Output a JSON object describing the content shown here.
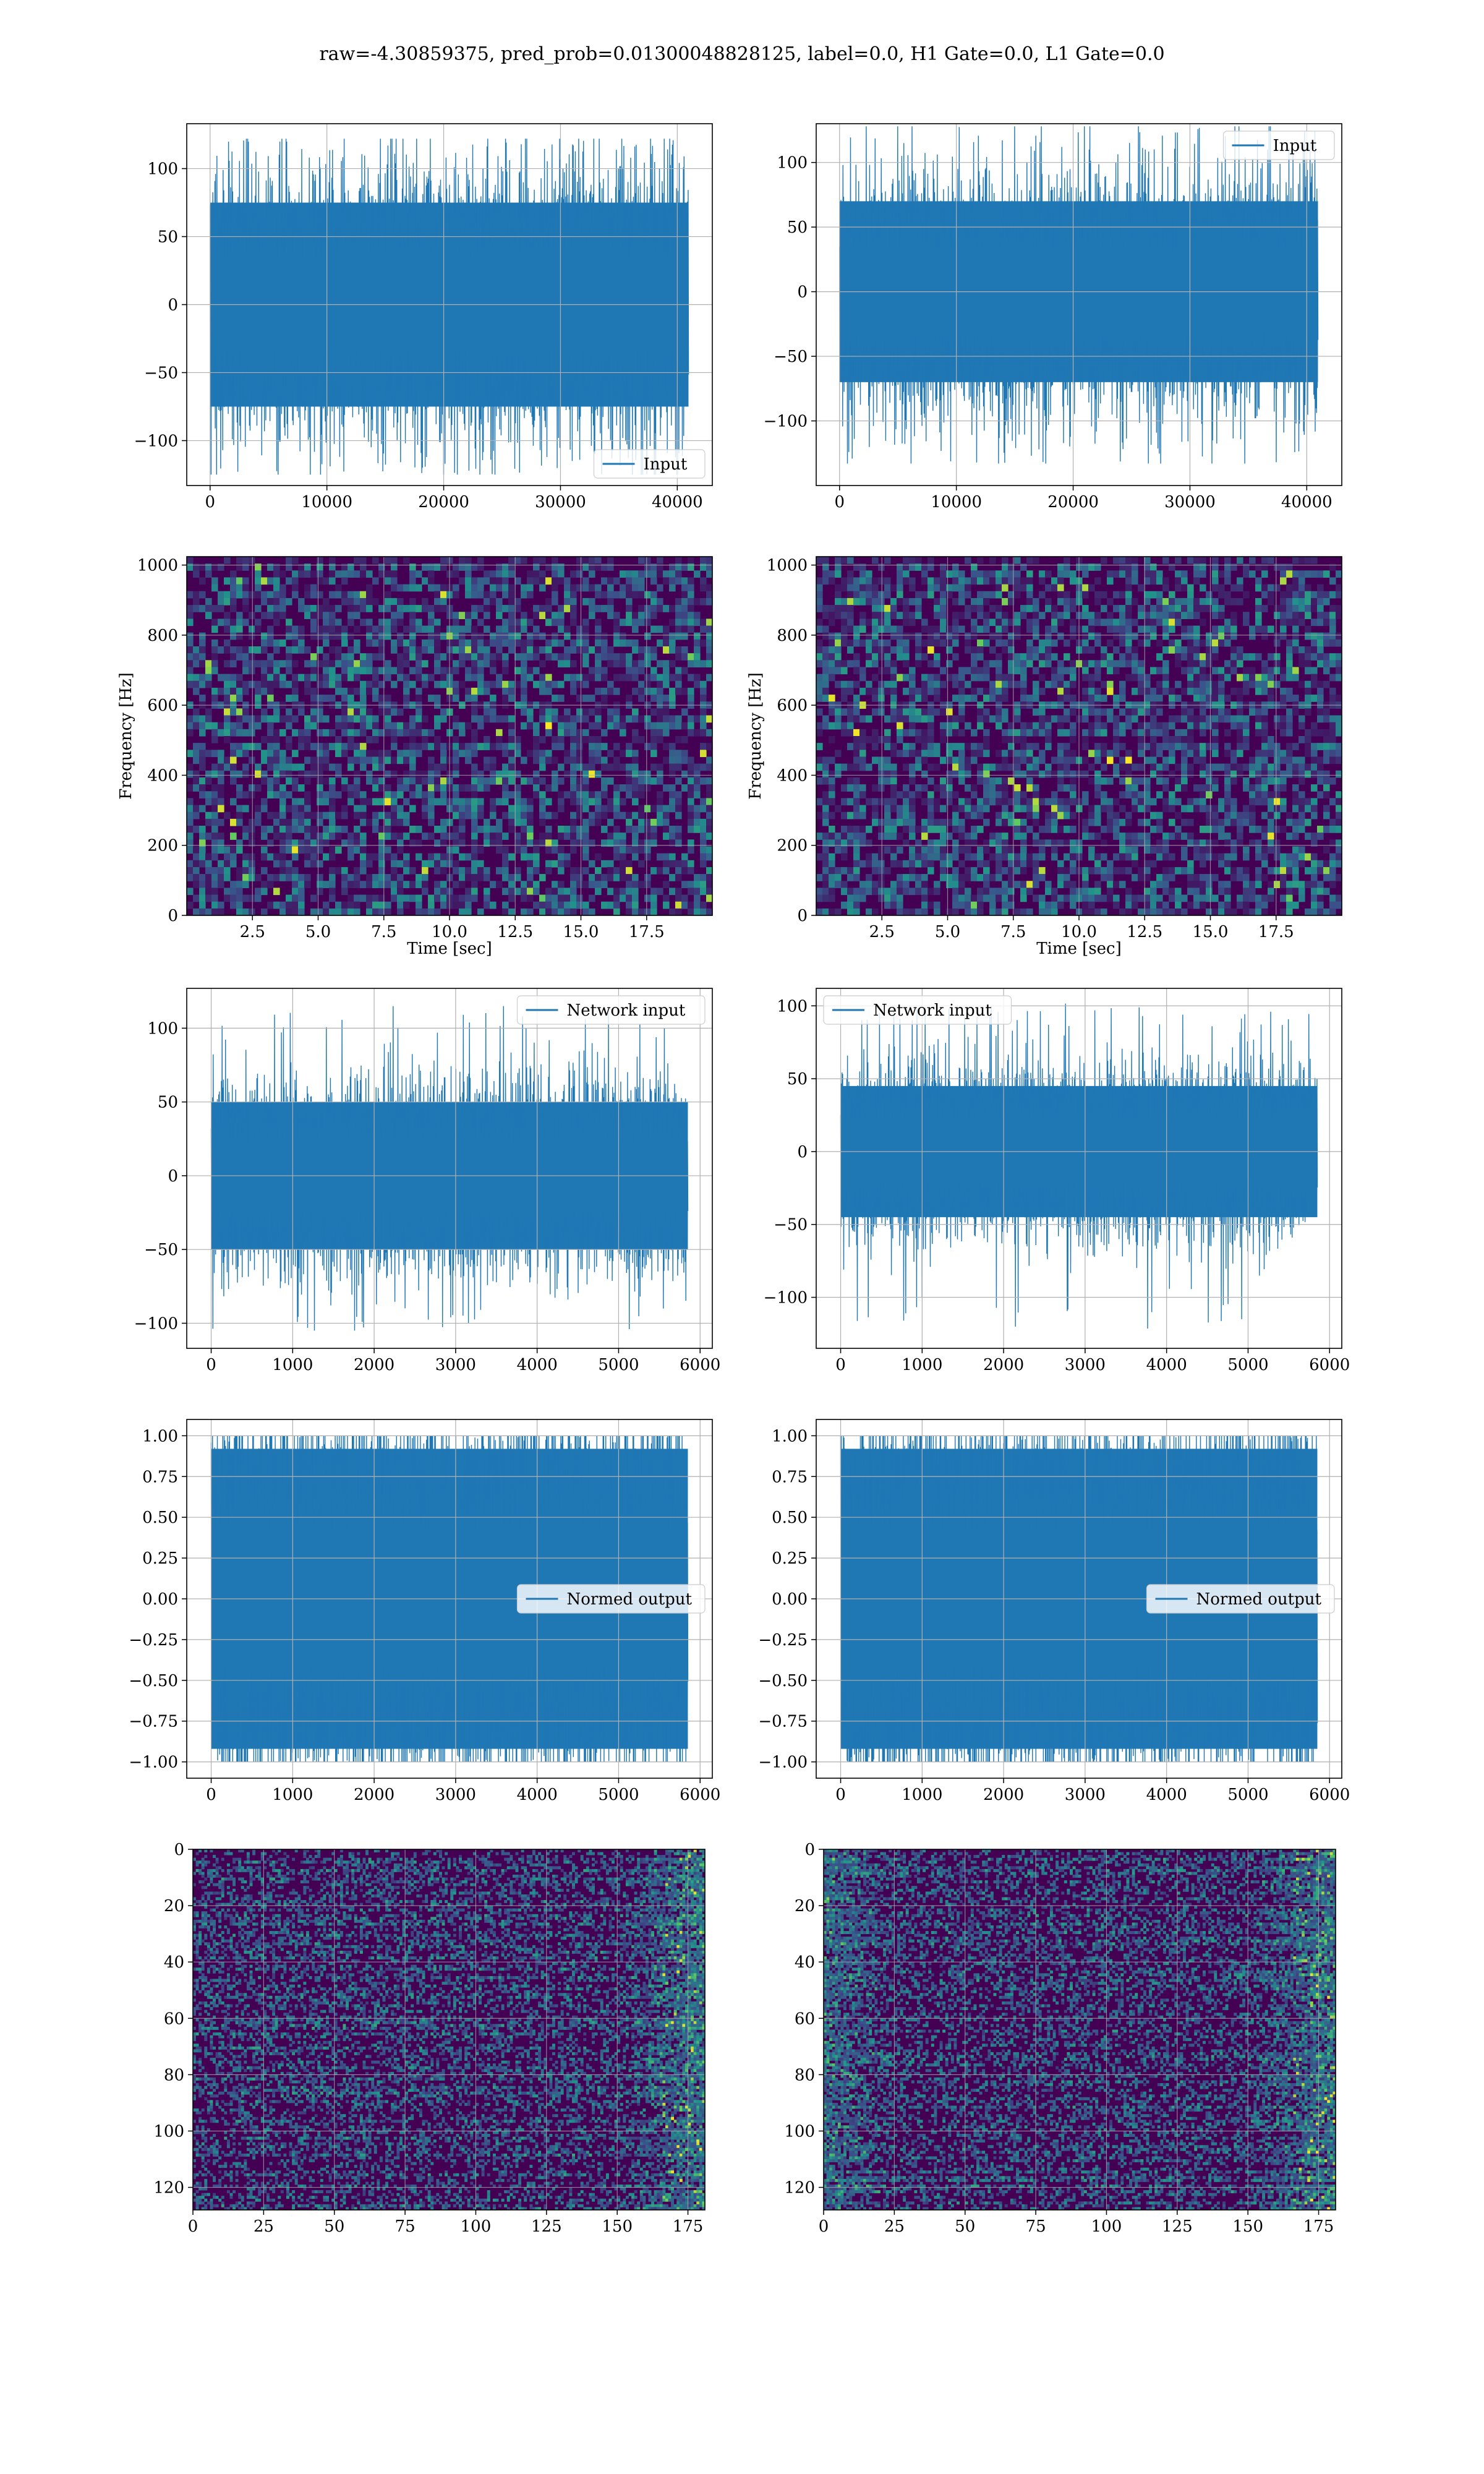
{
  "figure": {
    "title": "raw=-4.30859375, pred_prob=0.01300048828125, label=0.0, H1 Gate=0.0, L1 Gate=0.0",
    "colors": {
      "line": "#1f77b4",
      "grid": "#b0b0b0",
      "viridis_dark": "#440154",
      "viridis_blue": "#31688e",
      "viridis_teal": "#21918c",
      "viridis_green": "#5ec962",
      "viridis_yellow": "#fde725"
    }
  },
  "chart_data": [
    {
      "id": "input-h1",
      "type": "line",
      "title": "",
      "xlabel": "",
      "ylabel": "",
      "xlim": [
        -2000,
        43000
      ],
      "ylim": [
        -133,
        133
      ],
      "xticks": [
        0,
        10000,
        20000,
        30000,
        40000
      ],
      "yticks": [
        -100,
        -50,
        0,
        50,
        100
      ],
      "xtick_labels": [
        "0",
        "10000",
        "20000",
        "30000",
        "40000"
      ],
      "ytick_labels": [
        "−100",
        "−50",
        "0",
        "50",
        "100"
      ],
      "series": [
        {
          "name": "Input",
          "kind": "noise",
          "x_range": [
            0,
            40960
          ],
          "band": [
            -75,
            75
          ],
          "extremes": [
            -125,
            122
          ]
        }
      ],
      "legend": "lower-right",
      "grid": true
    },
    {
      "id": "input-l1",
      "type": "line",
      "title": "",
      "xlabel": "",
      "ylabel": "",
      "xlim": [
        -2000,
        43000
      ],
      "ylim": [
        -150,
        130
      ],
      "xticks": [
        0,
        10000,
        20000,
        30000,
        40000
      ],
      "yticks": [
        -100,
        -50,
        0,
        50,
        100
      ],
      "xtick_labels": [
        "0",
        "10000",
        "20000",
        "30000",
        "40000"
      ],
      "ytick_labels": [
        "−100",
        "−50",
        "0",
        "50",
        "100"
      ],
      "series": [
        {
          "name": "Input",
          "kind": "noise",
          "x_range": [
            0,
            40960
          ],
          "band": [
            -70,
            70
          ],
          "extremes": [
            -133,
            128
          ]
        }
      ],
      "legend": "upper-right",
      "grid": true
    },
    {
      "id": "spec-h1",
      "type": "heatmap",
      "title": "",
      "xlabel": "Time [sec]",
      "ylabel": "Frequency [Hz]",
      "xlim": [
        0,
        20
      ],
      "ylim": [
        0,
        1024
      ],
      "xticks": [
        2.5,
        5.0,
        7.5,
        10.0,
        12.5,
        15.0,
        17.5
      ],
      "yticks": [
        0,
        200,
        400,
        600,
        800,
        1000
      ],
      "xtick_labels": [
        "2.5",
        "5.0",
        "7.5",
        "10.0",
        "12.5",
        "15.0",
        "17.5"
      ],
      "ytick_labels": [
        "0",
        "200",
        "400",
        "600",
        "800",
        "1000"
      ],
      "colormap": "viridis",
      "grid": true
    },
    {
      "id": "spec-l1",
      "type": "heatmap",
      "title": "",
      "xlabel": "Time [sec]",
      "ylabel": "Frequency [Hz]",
      "xlim": [
        0,
        20
      ],
      "ylim": [
        0,
        1024
      ],
      "xticks": [
        2.5,
        5.0,
        7.5,
        10.0,
        12.5,
        15.0,
        17.5
      ],
      "yticks": [
        0,
        200,
        400,
        600,
        800,
        1000
      ],
      "xtick_labels": [
        "2.5",
        "5.0",
        "7.5",
        "10.0",
        "12.5",
        "15.0",
        "17.5"
      ],
      "ytick_labels": [
        "0",
        "200",
        "400",
        "600",
        "800",
        "1000"
      ],
      "colormap": "viridis",
      "grid": true
    },
    {
      "id": "net-h1",
      "type": "line",
      "title": "",
      "xlabel": "",
      "ylabel": "",
      "xlim": [
        -300,
        6150
      ],
      "ylim": [
        -117,
        127
      ],
      "xticks": [
        0,
        1000,
        2000,
        3000,
        4000,
        5000,
        6000
      ],
      "yticks": [
        -100,
        -50,
        0,
        50,
        100
      ],
      "xtick_labels": [
        "0",
        "1000",
        "2000",
        "3000",
        "4000",
        "5000",
        "6000"
      ],
      "ytick_labels": [
        "−100",
        "−50",
        "0",
        "50",
        "100"
      ],
      "series": [
        {
          "name": "Network input",
          "kind": "noise",
          "x_range": [
            0,
            5850
          ],
          "band": [
            -50,
            50
          ],
          "extremes": [
            -105,
            115
          ]
        }
      ],
      "legend": "upper-right",
      "grid": true
    },
    {
      "id": "net-l1",
      "type": "line",
      "title": "",
      "xlabel": "",
      "ylabel": "",
      "xlim": [
        -300,
        6150
      ],
      "ylim": [
        -135,
        112
      ],
      "xticks": [
        0,
        1000,
        2000,
        3000,
        4000,
        5000,
        6000
      ],
      "yticks": [
        -100,
        -50,
        0,
        50,
        100
      ],
      "xtick_labels": [
        "0",
        "1000",
        "2000",
        "3000",
        "4000",
        "5000",
        "6000"
      ],
      "ytick_labels": [
        "−100",
        "−50",
        "0",
        "50",
        "100"
      ],
      "series": [
        {
          "name": "Network input",
          "kind": "noise",
          "x_range": [
            0,
            5850
          ],
          "band": [
            -45,
            45
          ],
          "extremes": [
            -123,
            102
          ]
        }
      ],
      "legend": "upper-left",
      "grid": true
    },
    {
      "id": "norm-h1",
      "type": "line",
      "title": "",
      "xlabel": "",
      "ylabel": "",
      "xlim": [
        -300,
        6150
      ],
      "ylim": [
        -1.1,
        1.1
      ],
      "xticks": [
        0,
        1000,
        2000,
        3000,
        4000,
        5000,
        6000
      ],
      "yticks": [
        -1.0,
        -0.75,
        -0.5,
        -0.25,
        0.0,
        0.25,
        0.5,
        0.75,
        1.0
      ],
      "xtick_labels": [
        "0",
        "1000",
        "2000",
        "3000",
        "4000",
        "5000",
        "6000"
      ],
      "ytick_labels": [
        "−1.00",
        "−0.75",
        "−0.50",
        "−0.25",
        "0.00",
        "0.25",
        "0.50",
        "0.75",
        "1.00"
      ],
      "series": [
        {
          "name": "Normed output",
          "kind": "noise",
          "x_range": [
            0,
            5850
          ],
          "band": [
            -0.92,
            0.92
          ],
          "extremes": [
            -1.0,
            1.0
          ]
        }
      ],
      "legend": "center-right",
      "grid": true
    },
    {
      "id": "norm-l1",
      "type": "line",
      "title": "",
      "xlabel": "",
      "ylabel": "",
      "xlim": [
        -300,
        6150
      ],
      "ylim": [
        -1.1,
        1.1
      ],
      "xticks": [
        0,
        1000,
        2000,
        3000,
        4000,
        5000,
        6000
      ],
      "yticks": [
        -1.0,
        -0.75,
        -0.5,
        -0.25,
        0.0,
        0.25,
        0.5,
        0.75,
        1.0
      ],
      "xtick_labels": [
        "0",
        "1000",
        "2000",
        "3000",
        "4000",
        "5000",
        "6000"
      ],
      "ytick_labels": [
        "−1.00",
        "−0.75",
        "−0.50",
        "−0.25",
        "0.00",
        "0.25",
        "0.50",
        "0.75",
        "1.00"
      ],
      "series": [
        {
          "name": "Normed output",
          "kind": "noise",
          "x_range": [
            0,
            5850
          ],
          "band": [
            -0.92,
            0.92
          ],
          "extremes": [
            -1.0,
            1.0
          ]
        }
      ],
      "legend": "center-right",
      "grid": true
    },
    {
      "id": "feat-h1",
      "type": "heatmap",
      "title": "",
      "xlabel": "",
      "ylabel": "",
      "xlim": [
        0,
        181
      ],
      "ylim": [
        128,
        0
      ],
      "xticks": [
        0,
        25,
        50,
        75,
        100,
        125,
        150,
        175
      ],
      "yticks": [
        0,
        20,
        40,
        60,
        80,
        100,
        120
      ],
      "xtick_labels": [
        "0",
        "25",
        "50",
        "75",
        "100",
        "125",
        "150",
        "175"
      ],
      "ytick_labels": [
        "0",
        "20",
        "40",
        "60",
        "80",
        "100",
        "120"
      ],
      "colormap": "viridis",
      "grid": true
    },
    {
      "id": "feat-l1",
      "type": "heatmap",
      "title": "",
      "xlabel": "",
      "ylabel": "",
      "xlim": [
        0,
        181
      ],
      "ylim": [
        128,
        0
      ],
      "xticks": [
        0,
        25,
        50,
        75,
        100,
        125,
        150,
        175
      ],
      "yticks": [
        0,
        20,
        40,
        60,
        80,
        100,
        120
      ],
      "xtick_labels": [
        "0",
        "25",
        "50",
        "75",
        "100",
        "125",
        "150",
        "175"
      ],
      "ytick_labels": [
        "0",
        "20",
        "40",
        "60",
        "80",
        "100",
        "120"
      ],
      "colormap": "viridis",
      "grid": true
    }
  ]
}
